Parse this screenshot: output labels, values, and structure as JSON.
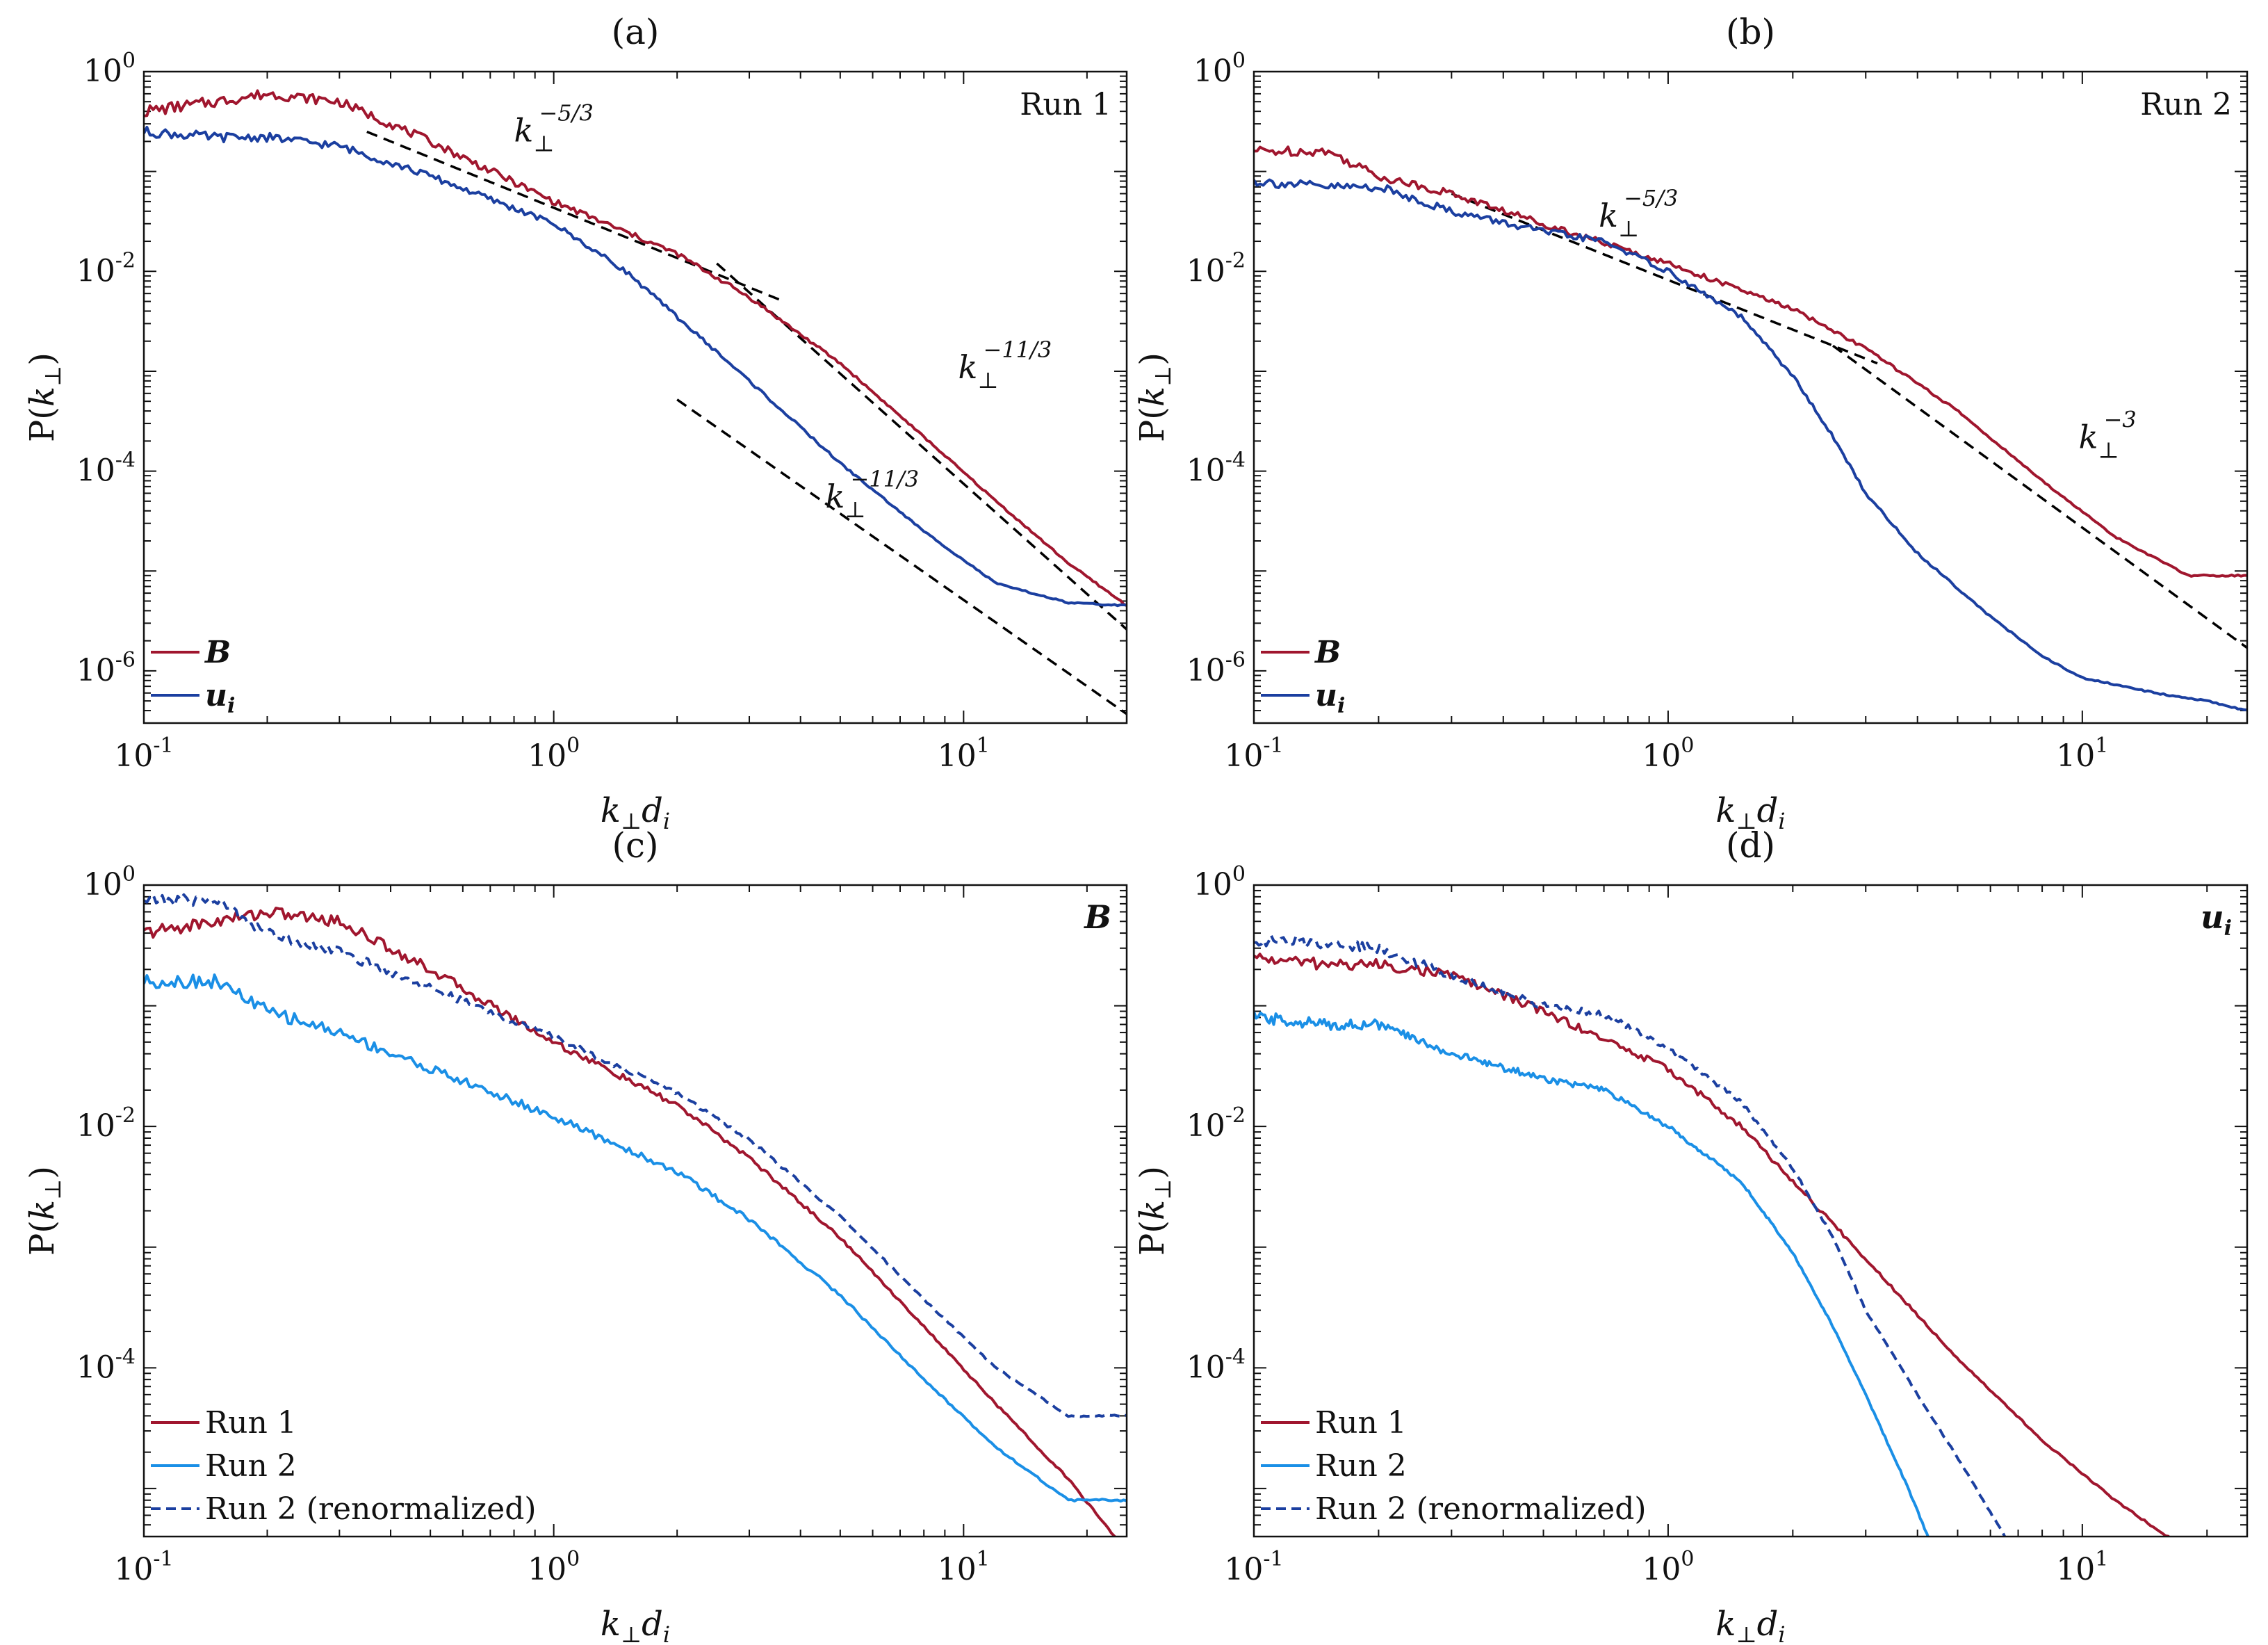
{
  "figure": {
    "panels": [
      "a",
      "b",
      "c",
      "d"
    ]
  },
  "colors": {
    "run1": "#a0162e",
    "run2": "#1b3fa0",
    "run2_light": "#1a8fe6",
    "fit": "#000000"
  },
  "chart_data": [
    {
      "id": "a",
      "type": "line",
      "title": "(a)",
      "xlabel": "k⊥di",
      "ylabel": "P(k⊥)",
      "xscale": "log",
      "yscale": "log",
      "xlim": [
        0.1,
        25
      ],
      "ylim": [
        3e-07,
        1
      ],
      "xticks": [
        {
          "base": "10",
          "exp": "-1",
          "v": 0.1
        },
        {
          "base": "10",
          "exp": "0",
          "v": 1
        },
        {
          "base": "10",
          "exp": "1",
          "v": 10
        }
      ],
      "yticks": [
        {
          "base": "10",
          "exp": "-6",
          "v": 1e-06
        },
        {
          "base": "10",
          "exp": "-4",
          "v": 0.0001
        },
        {
          "base": "10",
          "exp": "-2",
          "v": 0.01
        },
        {
          "base": "10",
          "exp": "0",
          "v": 1
        }
      ],
      "corner_label": {
        "text": "Run 1",
        "style": "plain"
      },
      "legend": [
        {
          "label": "B",
          "style": "bold-italic",
          "color": "run1",
          "dash": false
        },
        {
          "label": "ui",
          "style": "bold-italic-sub",
          "color": "run2",
          "dash": false
        }
      ],
      "series": [
        {
          "name": "B",
          "color": "run1",
          "dash": false,
          "noise": 0.06,
          "x": [
            0.1,
            0.15,
            0.2,
            0.3,
            0.5,
            1,
            2,
            3,
            5,
            8,
            12,
            18,
            25
          ],
          "y": [
            0.4,
            0.5,
            0.6,
            0.5,
            0.2,
            0.05,
            0.015,
            0.0055,
            0.0012,
            0.00022,
            5e-05,
            1.2e-05,
            4.5e-06
          ]
        },
        {
          "name": "ui",
          "color": "run2",
          "dash": false,
          "noise": 0.05,
          "x": [
            0.1,
            0.15,
            0.2,
            0.3,
            0.5,
            1,
            1.5,
            2,
            3,
            5,
            8,
            12,
            18,
            25
          ],
          "y": [
            0.25,
            0.22,
            0.22,
            0.18,
            0.09,
            0.03,
            0.01,
            0.0035,
            0.0008,
            0.00012,
            2.5e-05,
            7.5e-06,
            4.8e-06,
            4.5e-06
          ]
        }
      ],
      "fits": [
        {
          "x": [
            0.35,
            3.6
          ],
          "y": [
            0.25,
            0.0051
          ]
        },
        {
          "x": [
            2.5,
            25
          ],
          "y": [
            0.012,
            2.6e-06
          ]
        },
        {
          "x": [
            2,
            25
          ],
          "y": [
            0.00052,
            3.7e-07
          ]
        }
      ],
      "annotations": [
        {
          "base": "k",
          "sub": "⊥",
          "sup": "−5/3",
          "x": 0.8,
          "y": 0.2
        },
        {
          "base": "k",
          "sub": "⊥",
          "sup": "−11/3",
          "x": 9.7,
          "y": 0.00085
        },
        {
          "base": "k",
          "sub": "⊥",
          "sup": "−11/3",
          "x": 4.6,
          "y": 4.3e-05
        }
      ]
    },
    {
      "id": "b",
      "type": "line",
      "title": "(b)",
      "xlabel": "k⊥di",
      "ylabel": "P(k⊥)",
      "xscale": "log",
      "yscale": "log",
      "xlim": [
        0.1,
        25
      ],
      "ylim": [
        3e-07,
        1
      ],
      "xticks": [
        {
          "base": "10",
          "exp": "-1",
          "v": 0.1
        },
        {
          "base": "10",
          "exp": "0",
          "v": 1
        },
        {
          "base": "10",
          "exp": "1",
          "v": 10
        }
      ],
      "yticks": [
        {
          "base": "10",
          "exp": "-6",
          "v": 1e-06
        },
        {
          "base": "10",
          "exp": "-4",
          "v": 0.0001
        },
        {
          "base": "10",
          "exp": "-2",
          "v": 0.01
        },
        {
          "base": "10",
          "exp": "0",
          "v": 1
        }
      ],
      "corner_label": {
        "text": "Run 2",
        "style": "plain"
      },
      "legend": [
        {
          "label": "B",
          "style": "bold-italic",
          "color": "run1",
          "dash": false
        },
        {
          "label": "ui",
          "style": "bold-italic-sub",
          "color": "run2",
          "dash": false
        }
      ],
      "series": [
        {
          "name": "B",
          "color": "run1",
          "dash": false,
          "noise": 0.05,
          "x": [
            0.1,
            0.15,
            0.2,
            0.3,
            0.5,
            1,
            2,
            3,
            5,
            8,
            12,
            18,
            25
          ],
          "y": [
            0.16,
            0.16,
            0.09,
            0.06,
            0.03,
            0.012,
            0.0042,
            0.0017,
            0.0004,
            8e-05,
            2.2e-05,
            9e-06,
            9e-06
          ]
        },
        {
          "name": "ui",
          "color": "run2",
          "dash": false,
          "noise": 0.05,
          "x": [
            0.1,
            0.15,
            0.2,
            0.3,
            0.5,
            0.7,
            1,
            1.5,
            2,
            2.5,
            3,
            4,
            6,
            8,
            10,
            15,
            20,
            25
          ],
          "y": [
            0.08,
            0.07,
            0.07,
            0.04,
            0.025,
            0.02,
            0.01,
            0.0035,
            0.0009,
            0.00022,
            6e-05,
            1.5e-05,
            3.5e-06,
            1.4e-06,
            8.5e-07,
            6e-07,
            5e-07,
            4e-07
          ]
        }
      ],
      "fits": [
        {
          "x": [
            0.3,
            3.2
          ],
          "y": [
            0.06,
            0.0012
          ]
        },
        {
          "x": [
            2.5,
            25
          ],
          "y": [
            0.0018,
            1.7e-06
          ]
        }
      ],
      "annotations": [
        {
          "base": "k",
          "sub": "⊥",
          "sup": "−5/3",
          "x": 0.68,
          "y": 0.028
        },
        {
          "base": "k",
          "sub": "⊥",
          "sup": "−3",
          "x": 9.8,
          "y": 0.00017
        }
      ]
    },
    {
      "id": "c",
      "type": "line",
      "title": "(c)",
      "xlabel": "k⊥di",
      "ylabel": "P(k⊥)",
      "xscale": "log",
      "yscale": "log",
      "xlim": [
        0.1,
        25
      ],
      "ylim": [
        4e-06,
        1
      ],
      "xticks": [
        {
          "base": "10",
          "exp": "-1",
          "v": 0.1
        },
        {
          "base": "10",
          "exp": "0",
          "v": 1
        },
        {
          "base": "10",
          "exp": "1",
          "v": 10
        }
      ],
      "yticks": [
        {
          "base": "10",
          "exp": "-4",
          "v": 0.0001
        },
        {
          "base": "10",
          "exp": "-2",
          "v": 0.01
        },
        {
          "base": "10",
          "exp": "0",
          "v": 1
        }
      ],
      "corner_label": {
        "text": "B",
        "style": "bold-italic"
      },
      "legend": [
        {
          "label": "Run 1",
          "style": "plain",
          "color": "run1",
          "dash": false
        },
        {
          "label": "Run 2",
          "style": "plain",
          "color": "run2_light",
          "dash": false
        },
        {
          "label": "Run 2 (renormalized)",
          "style": "plain",
          "color": "run2",
          "dash": true
        }
      ],
      "series": [
        {
          "name": "Run 1",
          "color": "run1",
          "dash": false,
          "noise": 0.06,
          "x": [
            0.1,
            0.15,
            0.2,
            0.3,
            0.5,
            1,
            2,
            3,
            5,
            8,
            12,
            18,
            25
          ],
          "y": [
            0.4,
            0.5,
            0.6,
            0.5,
            0.2,
            0.05,
            0.015,
            0.0055,
            0.0012,
            0.00022,
            5e-05,
            1.2e-05,
            3e-06
          ]
        },
        {
          "name": "Run 2",
          "color": "run2_light",
          "dash": false,
          "noise": 0.06,
          "x": [
            0.1,
            0.15,
            0.2,
            0.3,
            0.5,
            1,
            2,
            3,
            5,
            8,
            12,
            18,
            25
          ],
          "y": [
            0.16,
            0.16,
            0.09,
            0.06,
            0.03,
            0.012,
            0.0042,
            0.0017,
            0.0004,
            8e-05,
            2.2e-05,
            8e-06,
            8e-06
          ]
        },
        {
          "name": "Run 2 (renormalized)",
          "color": "run2",
          "dash": true,
          "noise": 0.05,
          "x": [
            0.1,
            0.15,
            0.2,
            0.3,
            0.5,
            1,
            2,
            3,
            5,
            8,
            12,
            18,
            25
          ],
          "y": [
            0.75,
            0.75,
            0.4,
            0.28,
            0.14,
            0.055,
            0.019,
            0.0078,
            0.0018,
            0.00037,
            0.0001,
            4e-05,
            4e-05
          ]
        }
      ],
      "fits": [],
      "annotations": []
    },
    {
      "id": "d",
      "type": "line",
      "title": "(d)",
      "xlabel": "k⊥di",
      "ylabel": "P(k⊥)",
      "xscale": "log",
      "yscale": "log",
      "xlim": [
        0.1,
        25
      ],
      "ylim": [
        4e-06,
        1
      ],
      "xticks": [
        {
          "base": "10",
          "exp": "-1",
          "v": 0.1
        },
        {
          "base": "10",
          "exp": "0",
          "v": 1
        },
        {
          "base": "10",
          "exp": "1",
          "v": 10
        }
      ],
      "yticks": [
        {
          "base": "10",
          "exp": "-4",
          "v": 0.0001
        },
        {
          "base": "10",
          "exp": "-2",
          "v": 0.01
        },
        {
          "base": "10",
          "exp": "0",
          "v": 1
        }
      ],
      "corner_label": {
        "text": "ui",
        "style": "bold-italic-sub"
      },
      "legend": [
        {
          "label": "Run 1",
          "style": "plain",
          "color": "run1",
          "dash": false
        },
        {
          "label": "Run 2",
          "style": "plain",
          "color": "run2_light",
          "dash": false
        },
        {
          "label": "Run 2 (renormalized)",
          "style": "plain",
          "color": "run2",
          "dash": true
        }
      ],
      "series": [
        {
          "name": "Run 1",
          "color": "run1",
          "dash": false,
          "noise": 0.05,
          "x": [
            0.1,
            0.15,
            0.2,
            0.3,
            0.5,
            1,
            1.5,
            2,
            3,
            5,
            8,
            12,
            16,
            20
          ],
          "y": [
            0.25,
            0.22,
            0.22,
            0.18,
            0.09,
            0.03,
            0.01,
            0.0035,
            0.0008,
            0.00012,
            2.5e-05,
            8e-06,
            4e-06,
            3e-06
          ]
        },
        {
          "name": "Run 2",
          "color": "run2_light",
          "dash": false,
          "noise": 0.05,
          "x": [
            0.1,
            0.15,
            0.2,
            0.3,
            0.5,
            0.7,
            1,
            1.5,
            2,
            2.5,
            3,
            3.8,
            5
          ],
          "y": [
            0.08,
            0.07,
            0.07,
            0.04,
            0.025,
            0.02,
            0.01,
            0.0035,
            0.0009,
            0.00022,
            6e-05,
            1e-05,
            1e-06
          ]
        },
        {
          "name": "Run 2 (renormalized)",
          "color": "run2",
          "dash": true,
          "noise": 0.05,
          "x": [
            0.1,
            0.15,
            0.2,
            0.3,
            0.5,
            0.7,
            1,
            1.5,
            2,
            2.5,
            3,
            4,
            5,
            6.5,
            8
          ],
          "y": [
            0.35,
            0.33,
            0.3,
            0.18,
            0.1,
            0.085,
            0.045,
            0.016,
            0.0045,
            0.0012,
            0.0003,
            6e-05,
            1.8e-05,
            4e-06,
            1.5e-06
          ]
        }
      ],
      "fits": [],
      "annotations": []
    }
  ]
}
